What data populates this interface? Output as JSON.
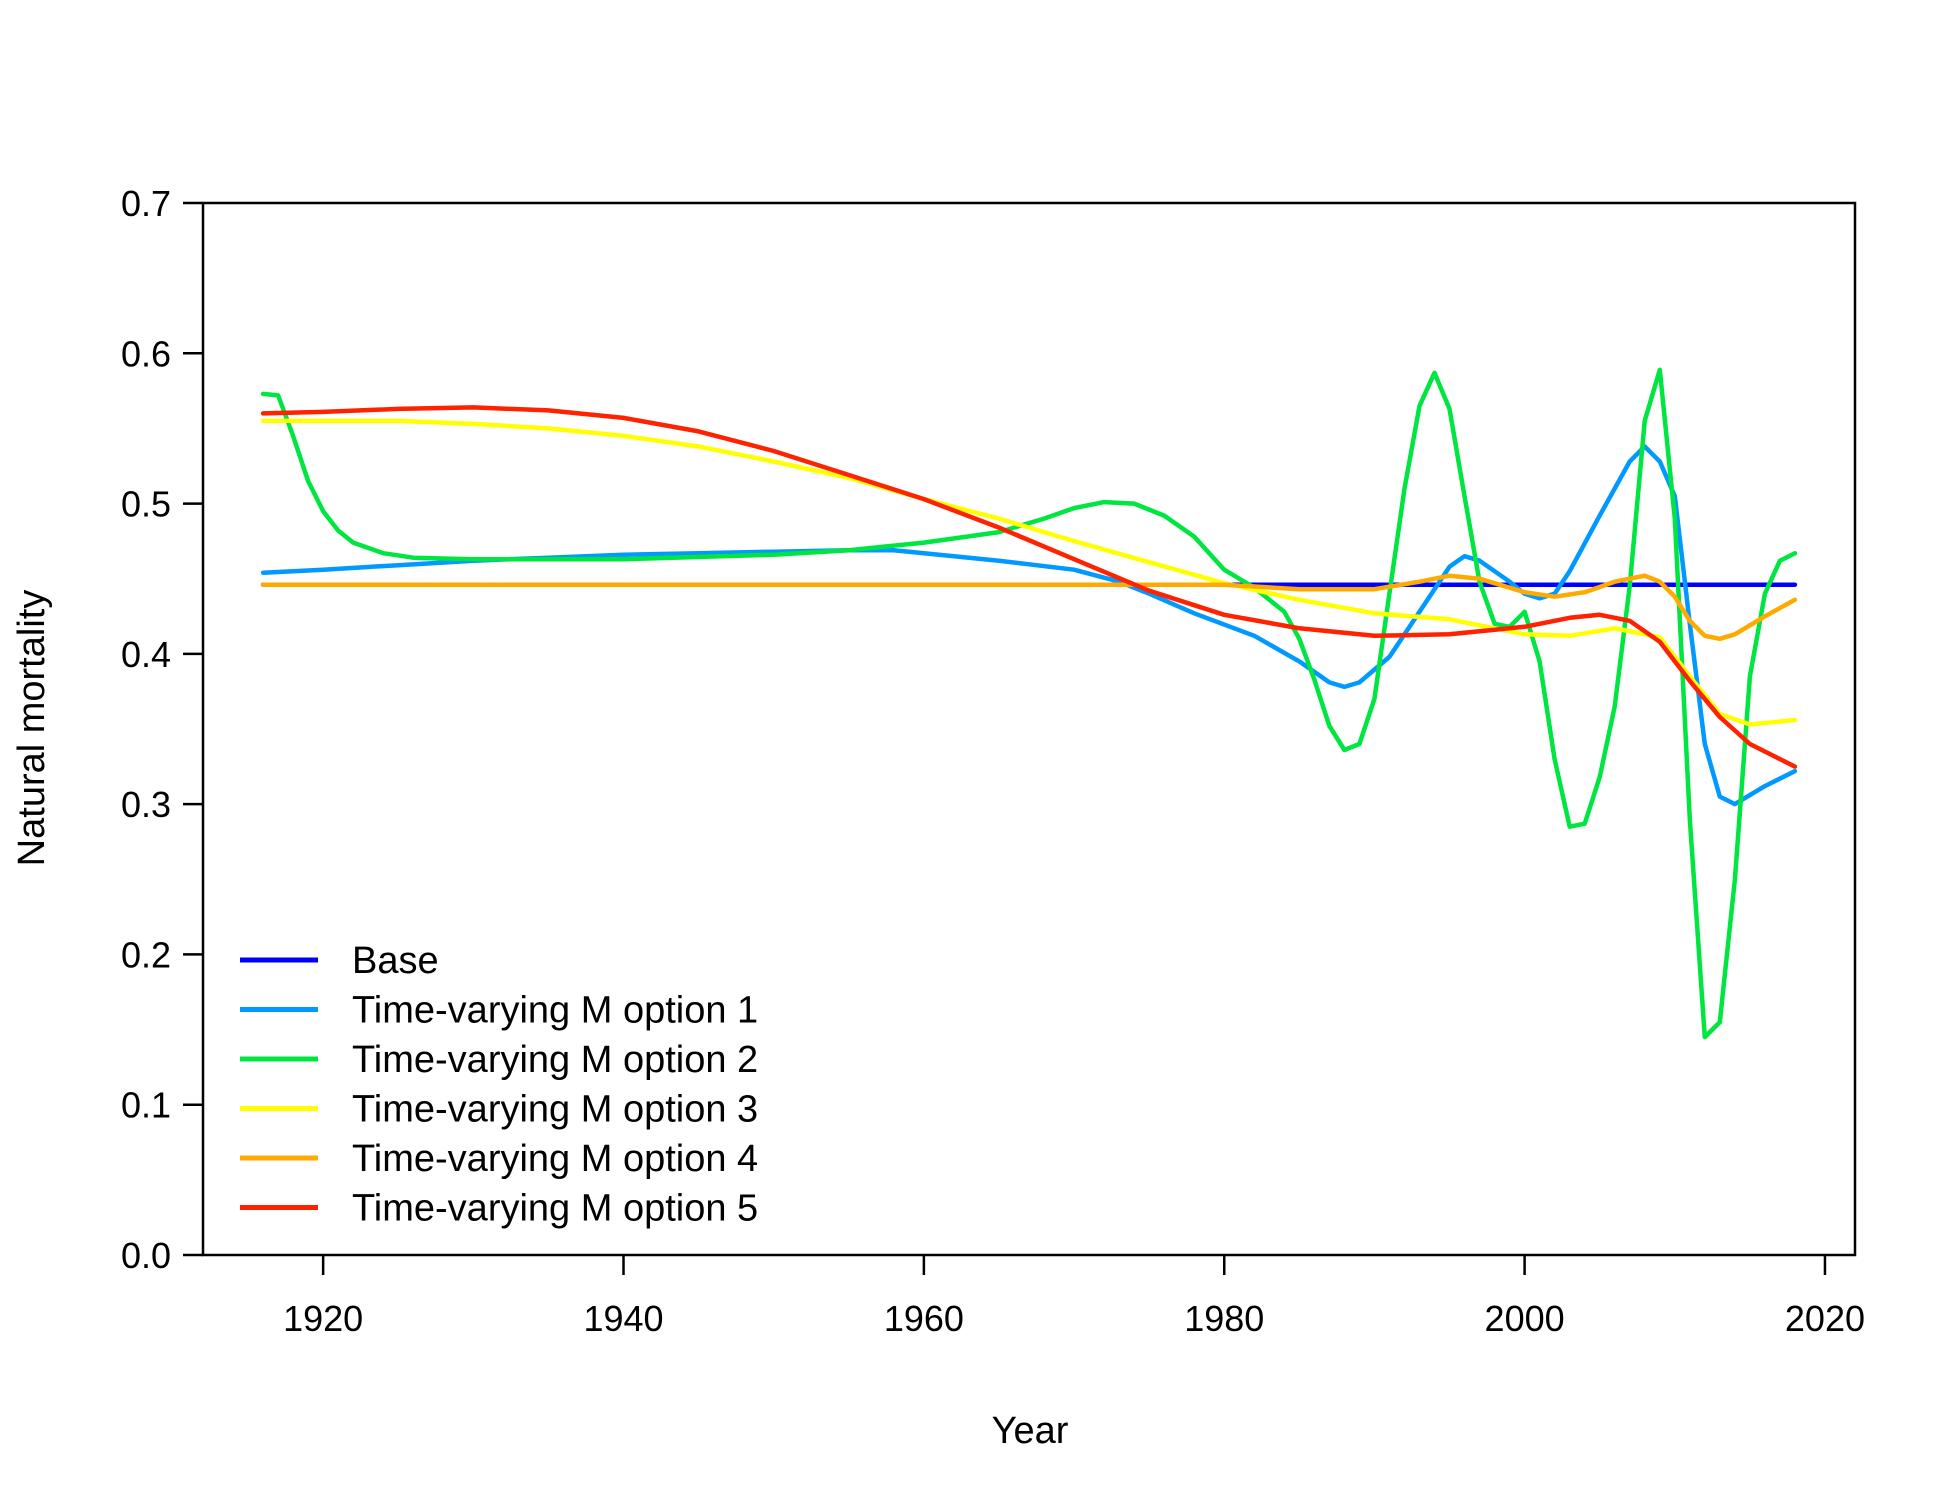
{
  "chart_data": {
    "type": "line",
    "title": "",
    "xlabel": "Year",
    "ylabel": "Natural mortality",
    "xlim": [
      1912,
      2022
    ],
    "ylim": [
      0,
      0.7
    ],
    "x_ticks": [
      1920,
      1940,
      1960,
      1980,
      2000,
      2020
    ],
    "y_ticks": [
      0.0,
      0.1,
      0.2,
      0.3,
      0.4,
      0.5,
      0.6,
      0.7
    ],
    "x_tick_labels": [
      "1920",
      "1940",
      "1960",
      "1980",
      "2000",
      "2020"
    ],
    "y_tick_labels": [
      "0.0",
      "0.1",
      "0.2",
      "0.3",
      "0.4",
      "0.5",
      "0.6",
      "0.7"
    ],
    "grid": false,
    "legend_position": "bottom-left",
    "series": [
      {
        "name": "Base",
        "color": "#0000ff",
        "points": [
          [
            1916,
            0.446
          ],
          [
            2018,
            0.446
          ]
        ]
      },
      {
        "name": "Time-varying M option 1",
        "color": "#0099ff",
        "points": [
          [
            1916,
            0.454
          ],
          [
            1920,
            0.456
          ],
          [
            1925,
            0.459
          ],
          [
            1930,
            0.462
          ],
          [
            1935,
            0.464
          ],
          [
            1940,
            0.466
          ],
          [
            1945,
            0.467
          ],
          [
            1950,
            0.468
          ],
          [
            1955,
            0.469
          ],
          [
            1958,
            0.469
          ],
          [
            1960,
            0.467
          ],
          [
            1965,
            0.462
          ],
          [
            1970,
            0.456
          ],
          [
            1973,
            0.448
          ],
          [
            1975,
            0.44
          ],
          [
            1978,
            0.427
          ],
          [
            1982,
            0.412
          ],
          [
            1985,
            0.395
          ],
          [
            1987,
            0.381
          ],
          [
            1988,
            0.378
          ],
          [
            1989,
            0.381
          ],
          [
            1991,
            0.398
          ],
          [
            1993,
            0.428
          ],
          [
            1995,
            0.458
          ],
          [
            1996,
            0.465
          ],
          [
            1997,
            0.462
          ],
          [
            1999,
            0.448
          ],
          [
            2000,
            0.44
          ],
          [
            2001,
            0.437
          ],
          [
            2002,
            0.44
          ],
          [
            2003,
            0.455
          ],
          [
            2005,
            0.492
          ],
          [
            2007,
            0.528
          ],
          [
            2008,
            0.538
          ],
          [
            2009,
            0.528
          ],
          [
            2010,
            0.505
          ],
          [
            2011,
            0.42
          ],
          [
            2012,
            0.34
          ],
          [
            2013,
            0.305
          ],
          [
            2014,
            0.3
          ],
          [
            2016,
            0.312
          ],
          [
            2018,
            0.322
          ]
        ]
      },
      {
        "name": "Time-varying M option 2",
        "color": "#00e640",
        "points": [
          [
            1916,
            0.573
          ],
          [
            1917,
            0.572
          ],
          [
            1918,
            0.545
          ],
          [
            1919,
            0.515
          ],
          [
            1920,
            0.495
          ],
          [
            1921,
            0.482
          ],
          [
            1922,
            0.474
          ],
          [
            1924,
            0.467
          ],
          [
            1926,
            0.464
          ],
          [
            1930,
            0.463
          ],
          [
            1940,
            0.463
          ],
          [
            1950,
            0.466
          ],
          [
            1955,
            0.469
          ],
          [
            1960,
            0.474
          ],
          [
            1965,
            0.481
          ],
          [
            1968,
            0.49
          ],
          [
            1970,
            0.497
          ],
          [
            1972,
            0.501
          ],
          [
            1974,
            0.5
          ],
          [
            1976,
            0.492
          ],
          [
            1978,
            0.478
          ],
          [
            1980,
            0.456
          ],
          [
            1982,
            0.444
          ],
          [
            1984,
            0.428
          ],
          [
            1985,
            0.41
          ],
          [
            1986,
            0.383
          ],
          [
            1987,
            0.352
          ],
          [
            1988,
            0.336
          ],
          [
            1989,
            0.34
          ],
          [
            1990,
            0.37
          ],
          [
            1991,
            0.44
          ],
          [
            1992,
            0.51
          ],
          [
            1993,
            0.565
          ],
          [
            1994,
            0.587
          ],
          [
            1995,
            0.563
          ],
          [
            1996,
            0.505
          ],
          [
            1997,
            0.448
          ],
          [
            1998,
            0.42
          ],
          [
            1999,
            0.418
          ],
          [
            2000,
            0.428
          ],
          [
            2001,
            0.395
          ],
          [
            2002,
            0.33
          ],
          [
            2003,
            0.285
          ],
          [
            2004,
            0.287
          ],
          [
            2005,
            0.318
          ],
          [
            2006,
            0.365
          ],
          [
            2007,
            0.445
          ],
          [
            2008,
            0.555
          ],
          [
            2009,
            0.589
          ],
          [
            2010,
            0.49
          ],
          [
            2011,
            0.29
          ],
          [
            2012,
            0.145
          ],
          [
            2013,
            0.155
          ],
          [
            2014,
            0.25
          ],
          [
            2015,
            0.385
          ],
          [
            2016,
            0.44
          ],
          [
            2017,
            0.462
          ],
          [
            2018,
            0.467
          ]
        ]
      },
      {
        "name": "Time-varying M option 3",
        "color": "#ffff00",
        "points": [
          [
            1916,
            0.555
          ],
          [
            1920,
            0.555
          ],
          [
            1925,
            0.555
          ],
          [
            1930,
            0.553
          ],
          [
            1935,
            0.55
          ],
          [
            1940,
            0.545
          ],
          [
            1945,
            0.538
          ],
          [
            1950,
            0.528
          ],
          [
            1955,
            0.517
          ],
          [
            1960,
            0.503
          ],
          [
            1965,
            0.49
          ],
          [
            1970,
            0.475
          ],
          [
            1975,
            0.461
          ],
          [
            1980,
            0.447
          ],
          [
            1985,
            0.436
          ],
          [
            1990,
            0.427
          ],
          [
            1995,
            0.423
          ],
          [
            2000,
            0.413
          ],
          [
            2003,
            0.412
          ],
          [
            2006,
            0.417
          ],
          [
            2009,
            0.411
          ],
          [
            2011,
            0.385
          ],
          [
            2013,
            0.36
          ],
          [
            2015,
            0.353
          ],
          [
            2018,
            0.356
          ]
        ]
      },
      {
        "name": "Time-varying M option 4",
        "color": "#ffaa00",
        "points": [
          [
            1916,
            0.446
          ],
          [
            1930,
            0.446
          ],
          [
            1950,
            0.446
          ],
          [
            1970,
            0.446
          ],
          [
            1980,
            0.446
          ],
          [
            1985,
            0.443
          ],
          [
            1990,
            0.443
          ],
          [
            1993,
            0.448
          ],
          [
            1995,
            0.452
          ],
          [
            1997,
            0.45
          ],
          [
            2000,
            0.441
          ],
          [
            2002,
            0.438
          ],
          [
            2004,
            0.441
          ],
          [
            2006,
            0.448
          ],
          [
            2008,
            0.452
          ],
          [
            2009,
            0.448
          ],
          [
            2010,
            0.438
          ],
          [
            2011,
            0.422
          ],
          [
            2012,
            0.412
          ],
          [
            2013,
            0.41
          ],
          [
            2014,
            0.413
          ],
          [
            2016,
            0.425
          ],
          [
            2018,
            0.436
          ]
        ]
      },
      {
        "name": "Time-varying M option 5",
        "color": "#ff2200",
        "points": [
          [
            1916,
            0.56
          ],
          [
            1920,
            0.561
          ],
          [
            1925,
            0.563
          ],
          [
            1930,
            0.564
          ],
          [
            1935,
            0.562
          ],
          [
            1940,
            0.557
          ],
          [
            1945,
            0.548
          ],
          [
            1950,
            0.535
          ],
          [
            1955,
            0.519
          ],
          [
            1960,
            0.503
          ],
          [
            1965,
            0.484
          ],
          [
            1970,
            0.463
          ],
          [
            1975,
            0.442
          ],
          [
            1980,
            0.426
          ],
          [
            1985,
            0.417
          ],
          [
            1990,
            0.412
          ],
          [
            1995,
            0.413
          ],
          [
            2000,
            0.418
          ],
          [
            2003,
            0.424
          ],
          [
            2005,
            0.426
          ],
          [
            2007,
            0.422
          ],
          [
            2009,
            0.408
          ],
          [
            2011,
            0.382
          ],
          [
            2013,
            0.358
          ],
          [
            2015,
            0.34
          ],
          [
            2018,
            0.325
          ]
        ]
      }
    ]
  }
}
